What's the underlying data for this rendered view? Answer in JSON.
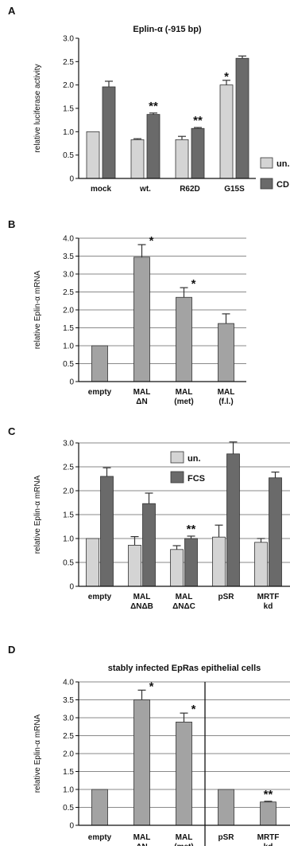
{
  "chart_data": [
    {
      "panel": "A",
      "type": "bar",
      "title": "Eplin-α (-915 bp)",
      "xlabel": "",
      "ylabel": "relative luciferase activity",
      "ylim": [
        0,
        3
      ],
      "yticks": [
        "0",
        "0.5",
        "1.0",
        "1.5",
        "2.0",
        "2.5",
        "3.0"
      ],
      "grid": false,
      "categories": [
        [
          "mock"
        ],
        [
          "wt."
        ],
        [
          "R62D"
        ],
        [
          "G15S"
        ]
      ],
      "series": [
        {
          "name": "un.",
          "color": "#d4d4d4",
          "values": [
            1.0,
            0.83,
            0.83,
            2.0
          ],
          "errors": [
            0,
            0.02,
            0.07,
            0.1
          ],
          "stars": [
            "",
            "",
            "",
            "*"
          ]
        },
        {
          "name": "CD",
          "color": "#6a6a6a",
          "values": [
            1.96,
            1.37,
            1.07,
            2.57
          ],
          "errors": [
            0.12,
            0.03,
            0.02,
            0.05
          ],
          "stars": [
            "",
            "**",
            "**",
            ""
          ]
        }
      ],
      "legend": "right"
    },
    {
      "panel": "B",
      "type": "bar",
      "title": "",
      "xlabel": "",
      "ylabel": "relative Eplin-α mRNA",
      "ylim": [
        0,
        4
      ],
      "yticks": [
        "0",
        "0.5",
        "1.0",
        "1.5",
        "2.0",
        "2.5",
        "3.0",
        "3.5",
        "4.0"
      ],
      "grid": true,
      "categories": [
        [
          "empty"
        ],
        [
          "MAL",
          "ΔN"
        ],
        [
          "MAL",
          "(met)"
        ],
        [
          "MAL",
          "(f.l.)"
        ]
      ],
      "series": [
        {
          "name": "",
          "color": "#a3a3a3",
          "values": [
            1.0,
            3.47,
            2.35,
            1.62
          ],
          "errors": [
            0,
            0.35,
            0.27,
            0.27
          ],
          "stars": [
            "",
            "*",
            "*",
            ""
          ]
        }
      ]
    },
    {
      "panel": "C",
      "type": "bar",
      "title": "",
      "xlabel": "",
      "ylabel": "relative Eplin-α mRNA",
      "ylim": [
        0,
        3
      ],
      "yticks": [
        "0",
        "0.5",
        "1.0",
        "1.5",
        "2.0",
        "2.5",
        "3.0"
      ],
      "grid": true,
      "categories": [
        [
          "empty"
        ],
        [
          "MAL",
          "ΔNΔB"
        ],
        [
          "MAL",
          "ΔNΔC"
        ],
        [
          "pSR"
        ],
        [
          "MRTF",
          "kd"
        ]
      ],
      "series": [
        {
          "name": "un.",
          "color": "#d4d4d4",
          "values": [
            1.0,
            0.86,
            0.77,
            1.03,
            0.92
          ],
          "errors": [
            0,
            0.18,
            0.08,
            0.25,
            0.08
          ],
          "stars": [
            "",
            "",
            "",
            "",
            ""
          ]
        },
        {
          "name": "FCS",
          "color": "#6a6a6a",
          "values": [
            2.3,
            1.73,
            1.0,
            2.77,
            2.27
          ],
          "errors": [
            0.18,
            0.22,
            0.05,
            0.25,
            0.12
          ],
          "stars": [
            "",
            "",
            "**",
            "",
            ""
          ]
        }
      ],
      "legend": "top-center"
    },
    {
      "panel": "D",
      "type": "bar",
      "title": "stably infected EpRas epithelial cells",
      "xlabel": "",
      "ylabel": "relative Eplin-α mRNA",
      "ylim": [
        0,
        4
      ],
      "yticks": [
        "0",
        "0.5",
        "1.0",
        "1.5",
        "2.0",
        "2.5",
        "3.0",
        "3.5",
        "4.0"
      ],
      "grid": true,
      "categories": [
        [
          "empty"
        ],
        [
          "MAL",
          "ΔN"
        ],
        [
          "MAL",
          "(met)"
        ],
        [
          "pSR"
        ],
        [
          "MRTF",
          "kd"
        ]
      ],
      "series": [
        {
          "name": "",
          "color": "#a3a3a3",
          "values": [
            1.0,
            3.5,
            2.88,
            1.0,
            0.65
          ],
          "errors": [
            0,
            0.27,
            0.25,
            0,
            0.02
          ],
          "stars": [
            "",
            "*",
            "*",
            "",
            "**"
          ]
        }
      ],
      "separator_after_category": 2
    }
  ]
}
